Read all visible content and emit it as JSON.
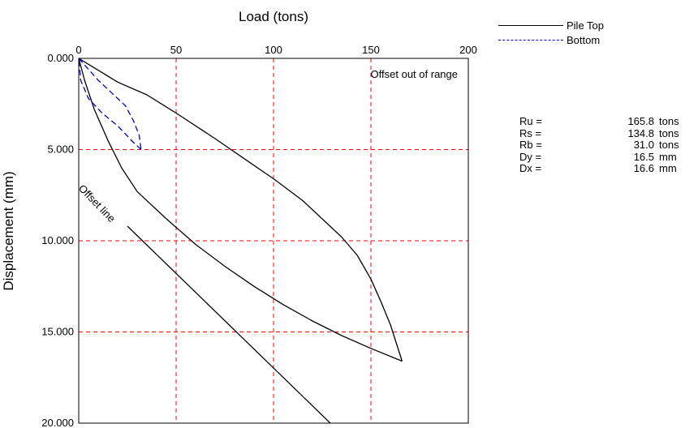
{
  "chart_data": {
    "type": "line",
    "xlabel": "Load (tons)",
    "ylabel": "Displacement (mm)",
    "xlim": [
      0,
      200
    ],
    "ylim": [
      0,
      20
    ],
    "y_inverted": true,
    "x_axis_position": "top",
    "x_ticks": [
      "0",
      "50",
      "100",
      "150",
      "200"
    ],
    "y_ticks": [
      "0.000",
      "5.000",
      "10.000",
      "15.000",
      "20.000"
    ],
    "x_tick_values": [
      0,
      50,
      100,
      150,
      200
    ],
    "y_tick_values": [
      0,
      5,
      10,
      15,
      20
    ],
    "grid": "dashed red",
    "legend_position": "top-right, outside plot",
    "series": [
      {
        "name": "Pile Top",
        "color": "#000000",
        "style": "solid",
        "loading": [
          [
            0,
            0
          ],
          [
            20,
            1.3
          ],
          [
            35,
            2.0
          ],
          [
            50,
            3.0
          ],
          [
            70,
            4.4
          ],
          [
            85,
            5.5
          ],
          [
            100,
            6.6
          ],
          [
            115,
            7.8
          ],
          [
            125,
            8.8
          ],
          [
            135,
            9.8
          ],
          [
            143,
            10.8
          ],
          [
            150,
            12.1
          ],
          [
            155,
            13.3
          ],
          [
            160,
            14.6
          ],
          [
            163,
            15.6
          ],
          [
            166,
            16.6
          ]
        ],
        "unloading": [
          [
            166,
            16.6
          ],
          [
            150,
            15.9
          ],
          [
            135,
            15.2
          ],
          [
            120,
            14.4
          ],
          [
            105,
            13.5
          ],
          [
            90,
            12.5
          ],
          [
            75,
            11.4
          ],
          [
            60,
            10.2
          ],
          [
            45,
            8.8
          ],
          [
            30,
            7.3
          ],
          [
            22,
            6.0
          ],
          [
            15,
            4.5
          ],
          [
            8,
            2.8
          ],
          [
            3,
            1.2
          ],
          [
            0,
            0
          ]
        ]
      },
      {
        "name": "Bottom",
        "color": "#0000cc",
        "style": "dashed",
        "loading": [
          [
            0,
            0
          ],
          [
            5,
            0.6
          ],
          [
            10,
            1.2
          ],
          [
            17,
            1.9
          ],
          [
            24,
            2.6
          ],
          [
            28,
            3.4
          ],
          [
            31,
            4.2
          ],
          [
            32,
            5.0
          ]
        ],
        "unloading": [
          [
            32,
            5.0
          ],
          [
            28,
            4.6
          ],
          [
            20,
            3.7
          ],
          [
            12,
            3.0
          ],
          [
            5,
            2.2
          ],
          [
            1,
            1.2
          ],
          [
            0,
            0
          ]
        ]
      },
      {
        "name": "Offset line",
        "color": "#000000",
        "style": "solid",
        "points": [
          [
            25,
            9.2
          ],
          [
            133,
            20.4
          ]
        ]
      }
    ],
    "annotations": {
      "offset_note": "Offset out of range",
      "offset_label": "Offset line"
    }
  },
  "legend": {
    "items": [
      {
        "label": "Pile Top",
        "color": "#000000",
        "style": "solid"
      },
      {
        "label": "Bottom",
        "color": "#0000cc",
        "style": "dashed"
      }
    ]
  },
  "results": [
    {
      "label": "Ru =",
      "value": "165.8",
      "unit": "tons"
    },
    {
      "label": "Rs =",
      "value": "134.8",
      "unit": "tons"
    },
    {
      "label": "Rb =",
      "value": "31.0",
      "unit": "tons"
    },
    {
      "label": "Dy =",
      "value": "16.5",
      "unit": "mm"
    },
    {
      "label": "Dx =",
      "value": "16.6",
      "unit": "mm"
    }
  ]
}
